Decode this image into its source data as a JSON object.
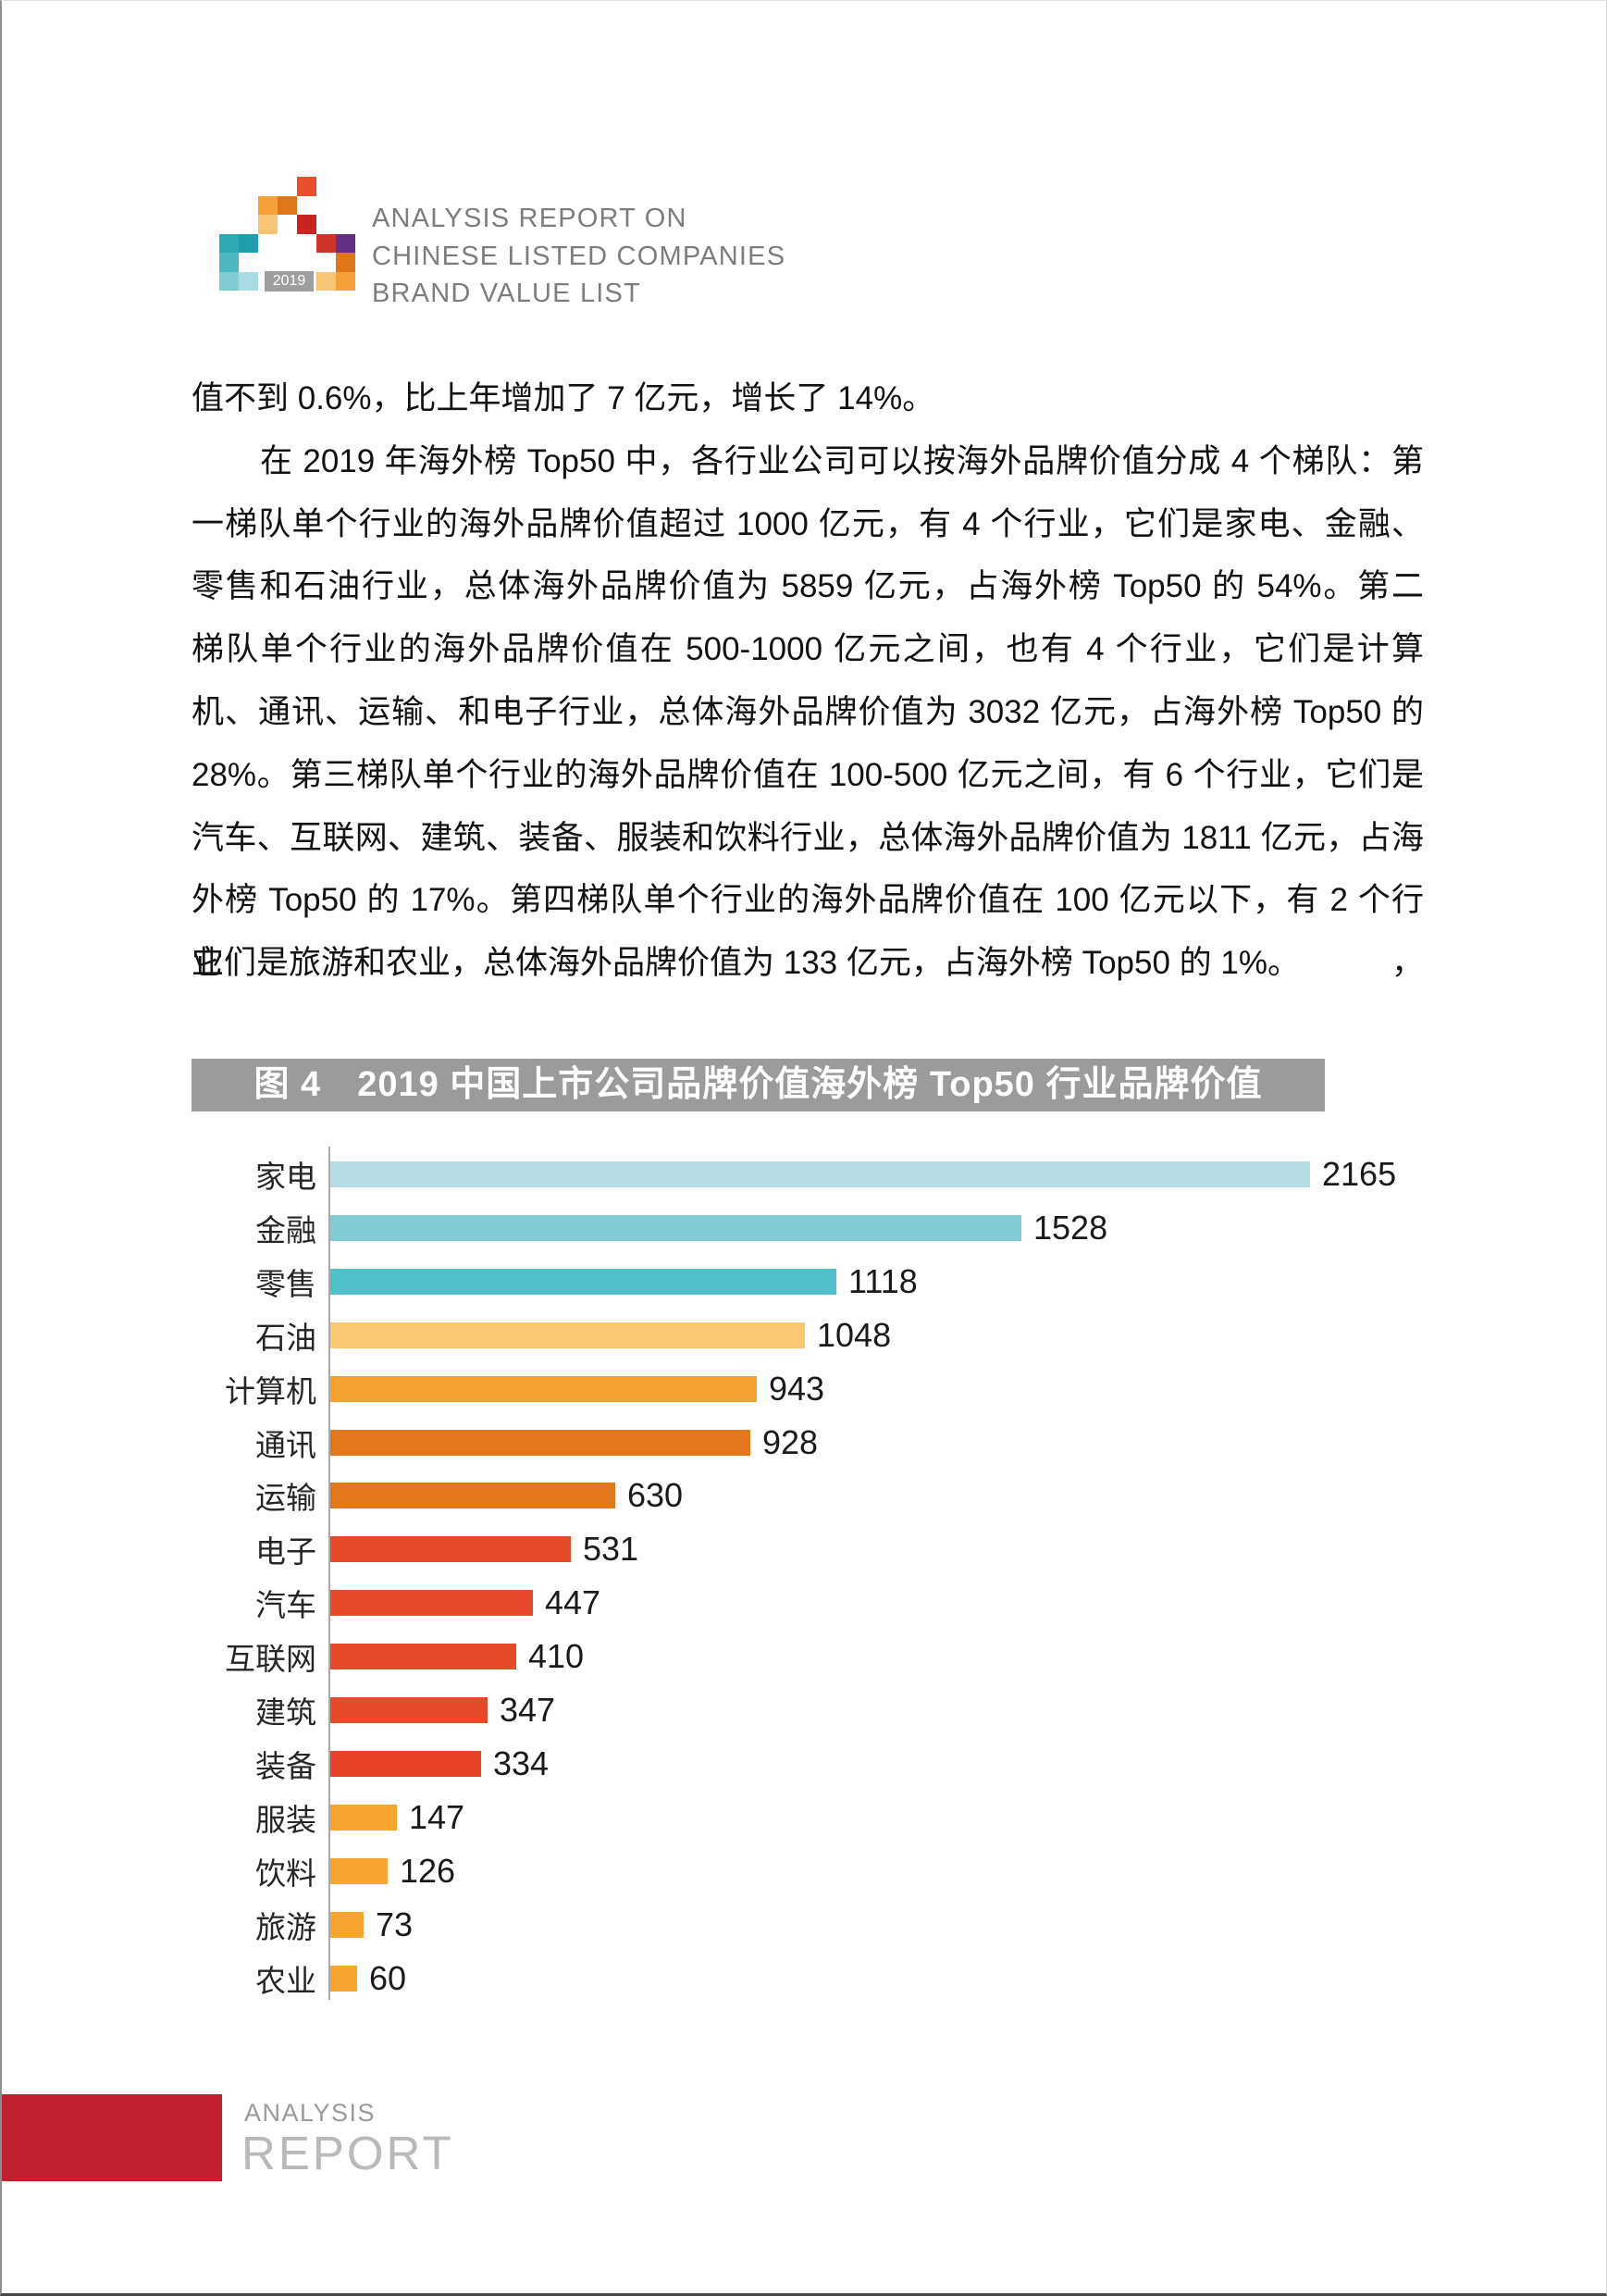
{
  "header": {
    "logo": {
      "year_label": "2019",
      "mosaic_cells": [
        {
          "col": 4,
          "row": 0,
          "color": "#e8502b"
        },
        {
          "col": 2,
          "row": 1,
          "color": "#f4a13a"
        },
        {
          "col": 3,
          "row": 1,
          "color": "#e0761b"
        },
        {
          "col": 2,
          "row": 2,
          "color": "#f8c577"
        },
        {
          "col": 4,
          "row": 2,
          "color": "#c9241f"
        },
        {
          "col": 0,
          "row": 3,
          "color": "#2fa8b4"
        },
        {
          "col": 1,
          "row": 3,
          "color": "#1f9fab"
        },
        {
          "col": 5,
          "row": 3,
          "color": "#cd352c"
        },
        {
          "col": 6,
          "row": 3,
          "color": "#652f84"
        },
        {
          "col": 0,
          "row": 4,
          "color": "#4cb6c2"
        },
        {
          "col": 6,
          "row": 4,
          "color": "#e0761b"
        },
        {
          "col": 0,
          "row": 5,
          "color": "#7fccd5"
        },
        {
          "col": 1,
          "row": 5,
          "color": "#a9dbe2"
        },
        {
          "col": 5,
          "row": 5,
          "color": "#f8c577"
        },
        {
          "col": 6,
          "row": 5,
          "color": "#f4a13a"
        }
      ]
    },
    "title_lines": [
      "ANALYSIS REPORT ON",
      "CHINESE LISTED COMPANIES",
      "BRAND VALUE LIST"
    ]
  },
  "body": {
    "lines": [
      {
        "text": "值不到 0.6%，比上年增加了 7 亿元，增长了 14%。",
        "indent": false,
        "fill": false
      },
      {
        "text": "在 2019 年海外榜 Top50 中，各行业公司可以按海外品牌价值分成 4 个梯队：第",
        "indent": true,
        "fill": true
      },
      {
        "text": "一梯队单个行业的海外品牌价值超过 1000 亿元，有 4 个行业，它们是家电、金融、",
        "indent": false,
        "fill": true
      },
      {
        "text": "零售和石油行业，总体海外品牌价值为 5859 亿元，占海外榜 Top50 的 54%。第二",
        "indent": false,
        "fill": true
      },
      {
        "text": "梯队单个行业的海外品牌价值在 500-1000 亿元之间，也有 4 个行业，它们是计算",
        "indent": false,
        "fill": true
      },
      {
        "text": "机、通讯、运输、和电子行业，总体海外品牌价值为 3032 亿元，占海外榜 Top50 的",
        "indent": false,
        "fill": true
      },
      {
        "text": "28%。第三梯队单个行业的海外品牌价值在 100-500 亿元之间，有 6 个行业，它们是",
        "indent": false,
        "fill": true
      },
      {
        "text": "汽车、互联网、建筑、装备、服装和饮料行业，总体海外品牌价值为 1811 亿元，占海",
        "indent": false,
        "fill": true
      },
      {
        "text": "外榜 Top50 的 17%。第四梯队单个行业的海外品牌价值在 100 亿元以下，有 2 个行业，",
        "indent": false,
        "fill": true
      },
      {
        "text": "它们是旅游和农业，总体海外品牌价值为 133 亿元，占海外榜 Top50 的 1%。",
        "indent": false,
        "fill": false
      }
    ]
  },
  "figure": {
    "caption": "图 4　2019 中国上市公司品牌价值海外榜 Top50 行业品牌价值",
    "caption_bg": "#9b9b9b"
  },
  "chart_data": {
    "type": "bar",
    "orientation": "horizontal",
    "title": "图 4　2019 中国上市公司品牌价值海外榜 Top50 行业品牌价值",
    "categories": [
      "家电",
      "金融",
      "零售",
      "石油",
      "计算机",
      "通讯",
      "运输",
      "电子",
      "汽车",
      "互联网",
      "建筑",
      "装备",
      "服装",
      "饮料",
      "旅游",
      "农业"
    ],
    "values": [
      2165,
      1528,
      1118,
      1048,
      943,
      928,
      630,
      531,
      447,
      410,
      347,
      334,
      147,
      126,
      73,
      60
    ],
    "bar_colors": [
      "#b6dde3",
      "#7fccd2",
      "#4fc0c9",
      "#fac871",
      "#f4a232",
      "#e2771c",
      "#e2771c",
      "#e74a28",
      "#e74a28",
      "#e74a28",
      "#e74a28",
      "#e64327",
      "#f6a52f",
      "#f6a52f",
      "#f6a52f",
      "#f6a52f"
    ],
    "value_labels_shown": true,
    "xlim": [
      0,
      2300
    ],
    "grid": false,
    "legend": false,
    "axis_line_color": "#a9a9a9"
  },
  "footer": {
    "small": "ANALYSIS",
    "large": "REPORT",
    "accent_color": "#c0212e"
  }
}
